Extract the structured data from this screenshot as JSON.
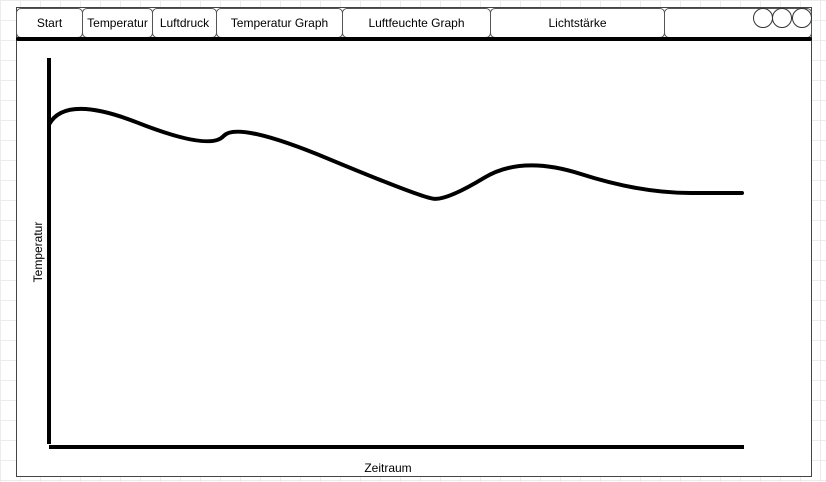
{
  "nav": {
    "tabs": [
      {
        "label": "Start"
      },
      {
        "label": "Temperatur"
      },
      {
        "label": "Luftdruck"
      },
      {
        "label": "Temperatur Graph"
      },
      {
        "label": "Luftfeuchte Graph"
      },
      {
        "label": "Lichtstärke"
      },
      {
        "label": ""
      }
    ],
    "window_controls": [
      "circle-icon",
      "circle-icon",
      "circle-icon"
    ]
  },
  "chart_data": {
    "type": "line",
    "ylabel": "Temperatur",
    "xlabel": "Zeitraum",
    "series": [
      {
        "x": [
          0,
          3,
          30,
          35,
          69,
          74,
          88,
          110,
          129
        ],
        "y": [
          83,
          91,
          76,
          84,
          64,
          63,
          75,
          65,
          65
        ]
      }
    ],
    "xlim": [
      0,
      129
    ],
    "ylim": [
      0,
      100
    ],
    "colors": {
      "line": "#000000",
      "axis": "#000000"
    }
  }
}
